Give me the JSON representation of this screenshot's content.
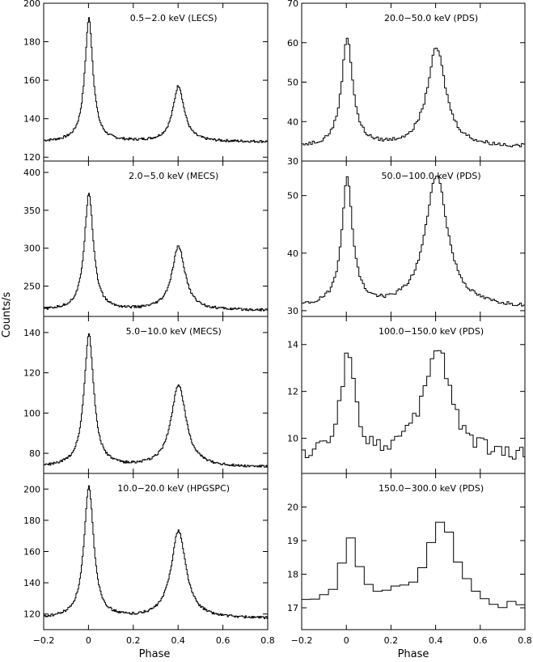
{
  "figure": {
    "ylabel": "Counts/s",
    "xlabel": "Phase"
  },
  "chart_data": [
    {
      "type": "line",
      "title": "0.5−2.0 keV (LECS)",
      "xlim": [
        -0.2,
        0.8
      ],
      "ylim": [
        118,
        200
      ],
      "yticks": [
        120,
        140,
        160,
        180,
        200
      ],
      "xticks": [
        -0.2,
        0,
        0.2,
        0.4,
        0.6,
        0.8
      ],
      "baseline": 128,
      "peaks": [
        {
          "x": 0.0,
          "y": 192,
          "w": 0.022
        },
        {
          "x": 0.4,
          "y": 157,
          "w": 0.03
        }
      ]
    },
    {
      "type": "line",
      "title": "2.0−5.0 keV (MECS)",
      "xlim": [
        -0.2,
        0.8
      ],
      "ylim": [
        210,
        415
      ],
      "yticks": [
        250,
        300,
        350,
        400
      ],
      "xticks": [
        -0.2,
        0,
        0.2,
        0.4,
        0.6,
        0.8
      ],
      "baseline": 218,
      "peaks": [
        {
          "x": 0.0,
          "y": 373,
          "w": 0.024
        },
        {
          "x": 0.4,
          "y": 302,
          "w": 0.035
        }
      ]
    },
    {
      "type": "line",
      "title": "5.0−10.0 keV (MECS)",
      "xlim": [
        -0.2,
        0.8
      ],
      "ylim": [
        70,
        148
      ],
      "yticks": [
        80,
        100,
        120,
        140
      ],
      "xticks": [
        -0.2,
        0,
        0.2,
        0.4,
        0.6,
        0.8
      ],
      "baseline": 73,
      "peaks": [
        {
          "x": 0.0,
          "y": 139,
          "w": 0.026
        },
        {
          "x": 0.4,
          "y": 114,
          "w": 0.04
        }
      ]
    },
    {
      "type": "line",
      "title": "10.0−20.0 keV (HPGSPC)",
      "xlim": [
        -0.2,
        0.8
      ],
      "ylim": [
        110,
        210
      ],
      "yticks": [
        120,
        140,
        160,
        180,
        200
      ],
      "xticks": [
        -0.2,
        0,
        0.2,
        0.4,
        0.6,
        0.8
      ],
      "baseline": 117,
      "peaks": [
        {
          "x": 0.0,
          "y": 201,
          "w": 0.026
        },
        {
          "x": 0.4,
          "y": 173,
          "w": 0.04
        }
      ]
    },
    {
      "type": "line",
      "title": "20.0−50.0 keV (PDS)",
      "xlim": [
        -0.2,
        0.8
      ],
      "ylim": [
        30,
        70
      ],
      "yticks": [
        30,
        40,
        50,
        60,
        70
      ],
      "xticks": [
        -0.2,
        0,
        0.2,
        0.4,
        0.6,
        0.8
      ],
      "baseline": 33.5,
      "peaks": [
        {
          "x": 0.0,
          "y": 61,
          "w": 0.03
        },
        {
          "x": 0.4,
          "y": 58.5,
          "w": 0.05
        }
      ]
    },
    {
      "type": "line",
      "title": "50.0−100.0 keV (PDS)",
      "xlim": [
        -0.2,
        0.8
      ],
      "ylim": [
        29,
        56
      ],
      "yticks": [
        30,
        40,
        50
      ],
      "xticks": [
        -0.2,
        0,
        0.2,
        0.4,
        0.6,
        0.8
      ],
      "baseline": 30.5,
      "peaks": [
        {
          "x": 0.0,
          "y": 52.5,
          "w": 0.03
        },
        {
          "x": 0.4,
          "y": 53.5,
          "w": 0.06
        }
      ]
    },
    {
      "type": "line",
      "title": "100.0−150.0 keV (PDS)",
      "xlim": [
        -0.2,
        0.8
      ],
      "ylim": [
        8.5,
        15.2
      ],
      "yticks": [
        10,
        12,
        14
      ],
      "xticks": [
        -0.2,
        0,
        0.2,
        0.4,
        0.6,
        0.8
      ],
      "baseline": 9.2,
      "peaks": [
        {
          "x": 0.0,
          "y": 13.8,
          "w": 0.035
        },
        {
          "x": 0.4,
          "y": 13.9,
          "w": 0.07
        }
      ]
    },
    {
      "type": "line",
      "title": "150.0−300.0 keV (PDS)",
      "xlim": [
        -0.2,
        0.8
      ],
      "ylim": [
        16.35,
        21.0
      ],
      "yticks": [
        17,
        18,
        19,
        20
      ],
      "xticks": [
        -0.2,
        0,
        0.2,
        0.4,
        0.6,
        0.8
      ],
      "baseline": 17.0,
      "peaks": [
        {
          "x": 0.0,
          "y": 19.1,
          "w": 0.05
        },
        {
          "x": 0.4,
          "y": 19.5,
          "w": 0.08
        }
      ]
    }
  ]
}
